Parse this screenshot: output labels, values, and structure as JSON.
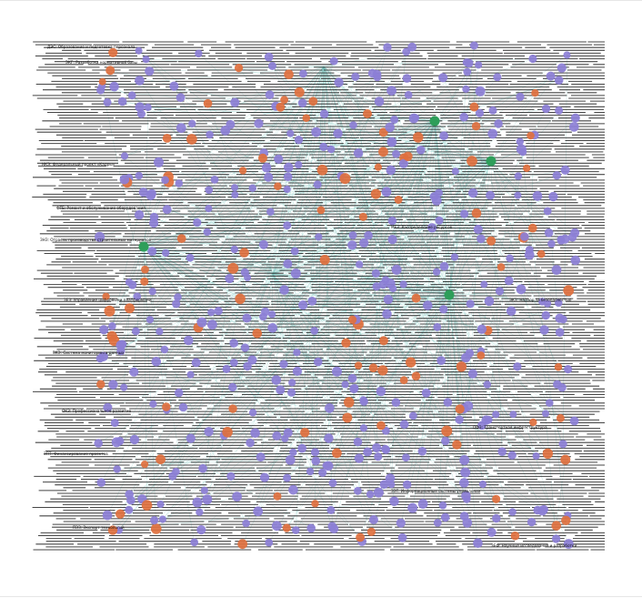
{
  "graph": {
    "colors": {
      "edge": "#7fc7c0",
      "node_concept": "#8c7fd6",
      "node_category": "#e0703e",
      "node_hub": "#2e9e5a",
      "label": "#111111"
    },
    "labels": [
      "ДЭС: Образование и подготовка персонала",
      "ЭКГ: Разработка нормативной базы",
      "НКЭ: Федеральный проект «Кадры»",
      "ФТЕ: Ремонт и обслуживание оборудования",
      "ЗНЗ: Отрасль производства строительных материалов",
      "ЗЕЗ: Управление цифровыми платформами",
      "ЗКЭ: Система мониторинга данных",
      "ОКЗ: Профессиональное развитие",
      "ЗПТ: Финансирование проектов",
      "ПЭЗ: Экспорт технологий",
      "МЕЗ: Распределение ресурсов",
      "ЭКЗ: Надзор за безопасностью",
      "ОФЗ: Транспортная инфраструктура",
      "ЗЭТ: Информационные системы управления",
      "ЗЕФ: Научные исследования и разработки"
    ]
  }
}
